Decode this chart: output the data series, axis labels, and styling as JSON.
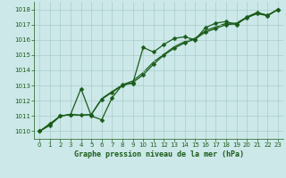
{
  "bg_color": "#cce8e8",
  "grid_color": "#aacccc",
  "line_color": "#1a5c1a",
  "title": "Graphe pression niveau de la mer (hPa)",
  "xlim": [
    -0.5,
    23.5
  ],
  "ylim": [
    1009.5,
    1018.5
  ],
  "yticks": [
    1010,
    1011,
    1012,
    1013,
    1014,
    1015,
    1016,
    1017,
    1018
  ],
  "xticks": [
    0,
    1,
    2,
    3,
    4,
    5,
    6,
    7,
    8,
    9,
    10,
    11,
    12,
    13,
    14,
    15,
    16,
    17,
    18,
    19,
    20,
    21,
    22,
    23
  ],
  "s1": [
    1010.0,
    1010.5,
    1011.0,
    1011.1,
    1012.8,
    1011.0,
    1010.75,
    1012.2,
    1013.05,
    1013.15,
    1015.5,
    1015.2,
    1015.7,
    1016.1,
    1016.2,
    1016.0,
    1016.8,
    1017.1,
    1017.2,
    1017.0,
    1017.5,
    1017.8,
    1017.6,
    1018.0
  ],
  "s2": [
    1010.0,
    1010.4,
    1011.0,
    1011.1,
    1011.05,
    1011.1,
    1012.1,
    1012.55,
    1013.0,
    1013.2,
    1013.7,
    1014.4,
    1015.0,
    1015.45,
    1015.8,
    1016.05,
    1016.5,
    1016.75,
    1017.0,
    1017.05,
    1017.45,
    1017.72,
    1017.58,
    1018.0
  ],
  "s3": [
    1010.0,
    1010.4,
    1011.0,
    1011.1,
    1011.05,
    1011.1,
    1012.15,
    1012.6,
    1013.05,
    1013.3,
    1013.85,
    1014.55,
    1015.05,
    1015.55,
    1015.88,
    1016.1,
    1016.6,
    1016.85,
    1017.08,
    1017.1,
    1017.5,
    1017.78,
    1017.62,
    1018.0
  ],
  "marker_size": 2.5,
  "linewidth": 0.9,
  "title_fontsize": 6,
  "tick_fontsize": 5
}
